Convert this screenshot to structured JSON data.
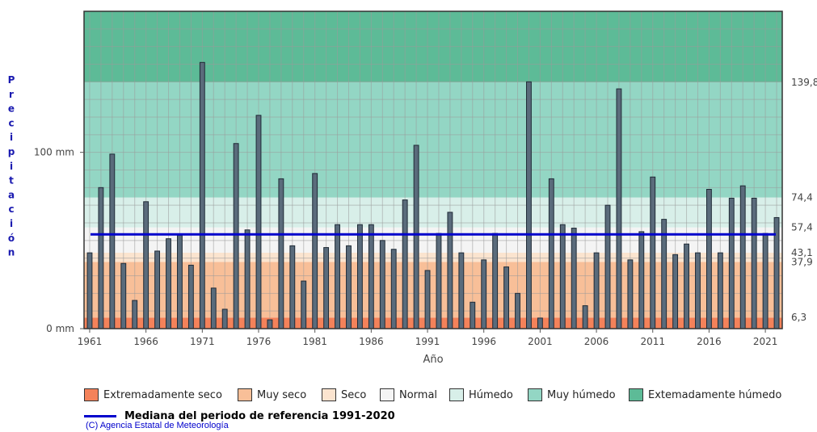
{
  "chart_data": {
    "type": "bar",
    "ylabel_letters": [
      "P",
      "r",
      "e",
      "c",
      "i",
      "p",
      "i",
      "t",
      "a",
      "c",
      "i",
      "ó",
      "n"
    ],
    "xlabel": "Año",
    "x_start_year": 1961,
    "x_end_year": 2022,
    "xticks": [
      "1961",
      "1966",
      "1971",
      "1976",
      "1981",
      "1986",
      "1991",
      "1996",
      "2001",
      "2006",
      "2011",
      "2016",
      "2021"
    ],
    "yticks": [
      {
        "value": 0,
        "label": "0 mm"
      },
      {
        "value": 100,
        "label": "100 mm"
      }
    ],
    "ylim": [
      0,
      180
    ],
    "right_thresholds": [
      {
        "value": 139.8,
        "label": "139,8"
      },
      {
        "value": 74.4,
        "label": "74,4"
      },
      {
        "value": 57.4,
        "label": "57,4"
      },
      {
        "value": 43.1,
        "label": "43,1"
      },
      {
        "value": 37.9,
        "label": "37,9"
      },
      {
        "value": 6.3,
        "label": "6,3"
      }
    ],
    "median": 53.5,
    "values": [
      43,
      80,
      99,
      37,
      16,
      72,
      44,
      51,
      53,
      36,
      151,
      23,
      11,
      105,
      56,
      121,
      5,
      85,
      47,
      27,
      88,
      46,
      59,
      47,
      59,
      59,
      50,
      45,
      73,
      104,
      33,
      54,
      66,
      43,
      15,
      39,
      54,
      35,
      20,
      140,
      6,
      85,
      59,
      57,
      13,
      43,
      70,
      136,
      39,
      55,
      86,
      62,
      42,
      48,
      43,
      79,
      43,
      74,
      81,
      74,
      54,
      63
    ],
    "bands": [
      {
        "from": 0,
        "to": 6.3,
        "color": "#f4825a",
        "name": "Extremadamente seco"
      },
      {
        "from": 6.3,
        "to": 37.9,
        "color": "#f8bf98",
        "name": "Muy seco"
      },
      {
        "from": 37.9,
        "to": 43.1,
        "color": "#fbe4cf",
        "name": "Seco"
      },
      {
        "from": 43.1,
        "to": 57.4,
        "color": "#f4f4f4",
        "name": "Normal"
      },
      {
        "from": 57.4,
        "to": 74.4,
        "color": "#d8efe9",
        "name": "Húmedo"
      },
      {
        "from": 74.4,
        "to": 139.8,
        "color": "#93d6c4",
        "name": "Muy húmedo"
      },
      {
        "from": 139.8,
        "to": 180,
        "color": "#5dbb97",
        "name": "Extemadamente húmedo"
      }
    ],
    "bar_color": "#5a6b7b",
    "median_color": "#0000cc"
  },
  "legend": [
    {
      "label": "Extremadamente seco",
      "color": "#f4825a"
    },
    {
      "label": "Muy seco",
      "color": "#f8bf98"
    },
    {
      "label": "Seco",
      "color": "#fbe4cf"
    },
    {
      "label": "Normal",
      "color": "#f4f4f4"
    },
    {
      "label": "Húmedo",
      "color": "#d8efe9"
    },
    {
      "label": "Muy húmedo",
      "color": "#93d6c4"
    },
    {
      "label": "Extemadamente húmedo",
      "color": "#5dbb97"
    }
  ],
  "median_legend": "Mediana del periodo de referencia 1991-2020",
  "copyright": "(C) Agencia Estatal de Meteorología"
}
